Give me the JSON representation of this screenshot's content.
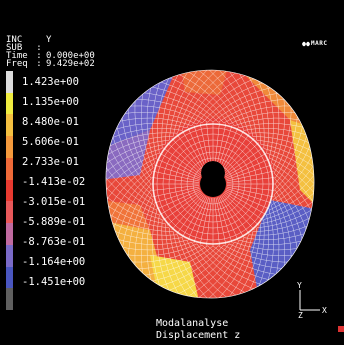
{
  "info": {
    "rows": [
      {
        "key": "INC",
        "sep": "",
        "value": "Y"
      },
      {
        "key": "SUB",
        "sep": ":",
        "value": ""
      },
      {
        "key": "Time",
        "sep": ":",
        "value": "0.000e+00"
      },
      {
        "key": "Freq",
        "sep": ":",
        "value": "9.429e+02"
      }
    ]
  },
  "logo": {
    "text": "MARC",
    "icon": "marc-logo-icon"
  },
  "legend": {
    "labels": [
      "1.423e+00",
      "1.135e+00",
      "8.480e-01",
      "5.606e-01",
      "2.733e-01",
      "-1.413e-02",
      "-3.015e-01",
      "-5.889e-01",
      "-8.763e-01",
      "-1.164e+00",
      "-1.451e+00"
    ],
    "colors": [
      "#dcdcdc",
      "#f0ec40",
      "#f5c040",
      "#f59a3c",
      "#ef6a38",
      "#e83a30",
      "#e8585a",
      "#c06aa0",
      "#7a6ac8",
      "#4a56c0",
      "#5f5f5f"
    ]
  },
  "axis": {
    "y_label": "Y",
    "z_label": "Z",
    "x_label": "X"
  },
  "caption": {
    "line1": "Modalanalyse",
    "line2": "Displacement z"
  },
  "colors": {
    "background": "#000000",
    "mesh": "#ffffff"
  }
}
